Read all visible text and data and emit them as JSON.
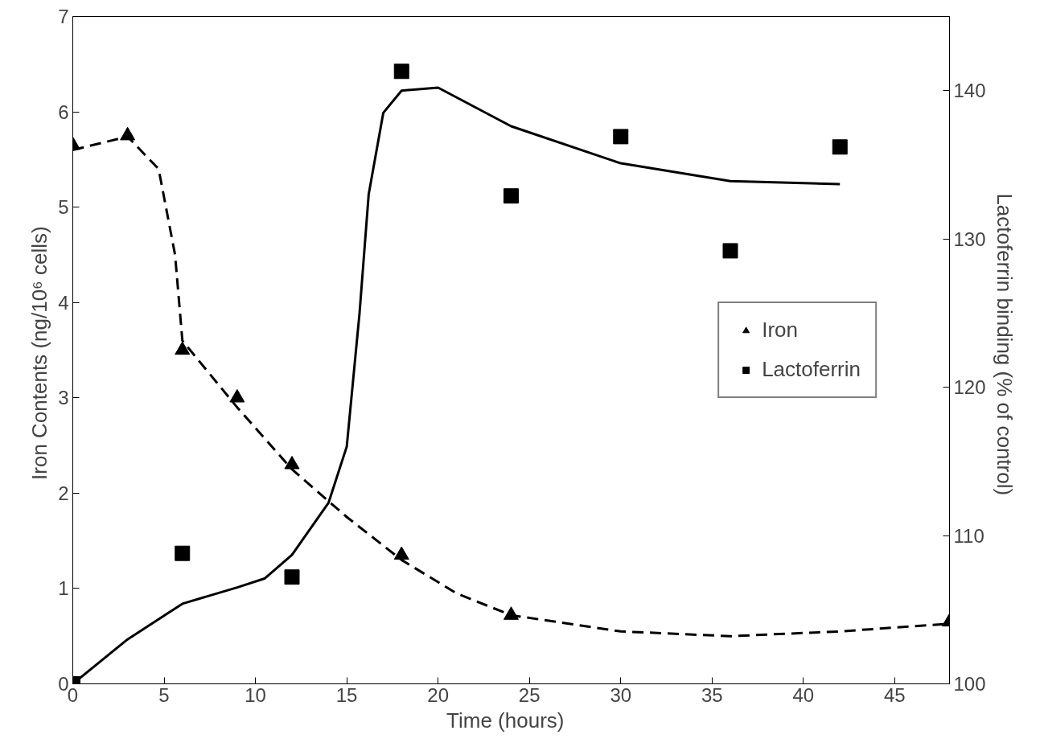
{
  "chart_data": {
    "type": "scatter",
    "xlabel": "Time   (hours)",
    "ylabel": "Iron Contents  (ng/10⁶ cells)",
    "y2label": "Lactoferrin binding   (% of control)",
    "xlim": [
      0,
      48
    ],
    "xticks": [
      0,
      5,
      10,
      15,
      20,
      25,
      30,
      35,
      40,
      45
    ],
    "ylim": [
      0,
      7
    ],
    "yticks": [
      0,
      1,
      2,
      3,
      4,
      5,
      6,
      7
    ],
    "y2lim": [
      100,
      145
    ],
    "y2ticks": [
      100,
      110,
      120,
      130,
      140
    ],
    "grid": false,
    "legend": "right",
    "series": [
      {
        "name": "Iron",
        "marker": "triangle",
        "color": "#000000",
        "x": [
          0,
          3,
          6,
          9,
          12,
          18,
          24,
          48
        ],
        "values": [
          5.65,
          5.75,
          3.5,
          3.0,
          2.3,
          1.35,
          0.72,
          0.65
        ]
      },
      {
        "type": "line",
        "line_style": "dashed",
        "marker": "none",
        "color": "#000000",
        "x": [
          0,
          3,
          4.7,
          5.6,
          6,
          9,
          12,
          15,
          18,
          21,
          24,
          30,
          36,
          42,
          48
        ],
        "values": [
          5.6,
          5.74,
          5.4,
          4.5,
          3.6,
          2.9,
          2.25,
          1.75,
          1.3,
          0.95,
          0.72,
          0.55,
          0.5,
          0.55,
          0.63
        ]
      },
      {
        "name": "Lactoferrin",
        "marker": "square",
        "axis": "y2",
        "color": "#000000",
        "x": [
          0,
          6,
          12,
          18,
          24,
          30,
          36,
          42
        ],
        "values": [
          100,
          108.8,
          107.2,
          141.3,
          132.9,
          136.9,
          129.2,
          136.2
        ]
      },
      {
        "type": "line",
        "line_style": "solid",
        "marker": "none",
        "axis": "y2",
        "color": "#000000",
        "x": [
          0,
          3,
          6,
          9,
          10.5,
          12,
          14,
          15,
          15.7,
          16.2,
          17,
          18,
          20,
          24,
          30,
          36,
          42
        ],
        "values": [
          100,
          103,
          105.4,
          106.5,
          107.1,
          108.7,
          112.2,
          116,
          125,
          133,
          138.5,
          140,
          140.2,
          137.6,
          135.1,
          133.9,
          133.7
        ]
      }
    ]
  }
}
